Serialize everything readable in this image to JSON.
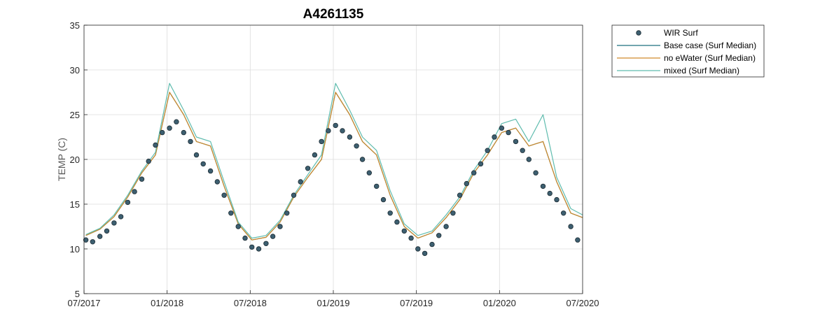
{
  "chart_data": {
    "type": "scatter",
    "title": "A4261135",
    "ylabel": "TEMP (C)",
    "xlabel": "",
    "x_range": [
      "07/2017",
      "07/2020"
    ],
    "xlim": [
      "2017-07-01",
      "2020-07-01"
    ],
    "ylim": [
      5,
      35
    ],
    "grid": true,
    "legend_position": "outside-top-right",
    "x_ticks": [
      "07/2017",
      "01/2018",
      "07/2018",
      "01/2019",
      "07/2019",
      "01/2020",
      "07/2020"
    ],
    "y_ticks": [
      5,
      10,
      15,
      20,
      25,
      30,
      35
    ],
    "legend": [
      "WIR Surf",
      "Base case (Surf Median)",
      "no eWater (Surf Median)",
      "mixed (Surf Median)"
    ],
    "colors": {
      "WIR Surf": "#3d5f70",
      "Base case (Surf Median)": "#1f6f7f",
      "no eWater (Surf Median)": "#d08a2a",
      "mixed (Surf Median)": "#5fbcae"
    },
    "series": [
      {
        "name": "WIR Surf",
        "kind": "markers",
        "x": [
          "2017-07-05",
          "2017-07-20",
          "2017-08-05",
          "2017-08-20",
          "2017-09-05",
          "2017-09-20",
          "2017-10-05",
          "2017-10-20",
          "2017-11-05",
          "2017-11-20",
          "2017-12-05",
          "2017-12-20",
          "2018-01-05",
          "2018-01-20",
          "2018-02-05",
          "2018-02-20",
          "2018-03-05",
          "2018-03-20",
          "2018-04-05",
          "2018-04-20",
          "2018-05-05",
          "2018-05-20",
          "2018-06-05",
          "2018-06-20",
          "2018-07-05",
          "2018-07-20",
          "2018-08-05",
          "2018-08-20",
          "2018-09-05",
          "2018-09-20",
          "2018-10-05",
          "2018-10-20",
          "2018-11-05",
          "2018-11-20",
          "2018-12-05",
          "2018-12-20",
          "2019-01-05",
          "2019-01-20",
          "2019-02-05",
          "2019-02-20",
          "2019-03-05",
          "2019-03-20",
          "2019-04-05",
          "2019-04-20",
          "2019-05-05",
          "2019-05-20",
          "2019-06-05",
          "2019-06-20",
          "2019-07-05",
          "2019-07-20",
          "2019-08-05",
          "2019-08-20",
          "2019-09-05",
          "2019-09-20",
          "2019-10-05",
          "2019-10-20",
          "2019-11-05",
          "2019-11-20",
          "2019-12-05",
          "2019-12-20",
          "2020-01-05",
          "2020-01-20",
          "2020-02-05",
          "2020-02-20",
          "2020-03-05",
          "2020-03-20",
          "2020-04-05",
          "2020-04-20",
          "2020-05-05",
          "2020-05-20",
          "2020-06-05",
          "2020-06-20"
        ],
        "y": [
          11.0,
          10.8,
          11.4,
          12.0,
          12.9,
          13.6,
          15.2,
          16.4,
          17.8,
          19.8,
          21.6,
          23.0,
          23.5,
          24.2,
          23.0,
          22.0,
          20.5,
          19.5,
          18.7,
          17.5,
          16.0,
          14.0,
          12.5,
          11.2,
          10.2,
          10.0,
          10.6,
          11.4,
          12.5,
          14.0,
          16.0,
          17.5,
          19.0,
          20.5,
          22.0,
          23.2,
          23.8,
          23.2,
          22.5,
          21.5,
          20.0,
          18.5,
          17.0,
          15.5,
          14.0,
          13.0,
          12.0,
          11.2,
          10.0,
          9.5,
          10.5,
          11.5,
          12.5,
          14.0,
          16.0,
          17.3,
          18.5,
          19.5,
          21.0,
          22.5,
          23.5,
          23.0,
          22.0,
          21.0,
          20.0,
          18.5,
          17.0,
          16.2,
          15.5,
          14.0,
          12.5,
          11.0
        ]
      },
      {
        "name": "Base case (Surf Median)",
        "kind": "line",
        "x": [
          "2017-07-05",
          "2017-08-05",
          "2017-09-05",
          "2017-10-05",
          "2017-11-05",
          "2017-12-05",
          "2018-01-05",
          "2018-02-05",
          "2018-03-05",
          "2018-04-05",
          "2018-05-05",
          "2018-06-05",
          "2018-07-05",
          "2018-08-05",
          "2018-09-05",
          "2018-10-05",
          "2018-11-05",
          "2018-12-05",
          "2019-01-05",
          "2019-02-05",
          "2019-03-05",
          "2019-04-05",
          "2019-05-05",
          "2019-06-05",
          "2019-07-05",
          "2019-08-05",
          "2019-09-05",
          "2019-10-05",
          "2019-11-05",
          "2019-12-05",
          "2020-01-05",
          "2020-02-05",
          "2020-03-05",
          "2020-04-05",
          "2020-05-05",
          "2020-06-05",
          "2020-07-01"
        ],
        "y": [
          11.5,
          12.2,
          13.6,
          15.8,
          18.5,
          20.5,
          27.5,
          25.0,
          22.0,
          21.5,
          17.0,
          12.8,
          11.0,
          11.3,
          13.0,
          15.8,
          18.0,
          20.0,
          27.5,
          25.0,
          22.0,
          20.5,
          16.0,
          12.5,
          11.2,
          11.8,
          13.5,
          15.5,
          18.5,
          20.5,
          23.0,
          23.5,
          21.5,
          22.0,
          17.5,
          14.0,
          13.5
        ]
      },
      {
        "name": "no eWater (Surf Median)",
        "kind": "line",
        "x": [
          "2017-07-05",
          "2017-08-05",
          "2017-09-05",
          "2017-10-05",
          "2017-11-05",
          "2017-12-05",
          "2018-01-05",
          "2018-02-05",
          "2018-03-05",
          "2018-04-05",
          "2018-05-05",
          "2018-06-05",
          "2018-07-05",
          "2018-08-05",
          "2018-09-05",
          "2018-10-05",
          "2018-11-05",
          "2018-12-05",
          "2019-01-05",
          "2019-02-05",
          "2019-03-05",
          "2019-04-05",
          "2019-05-05",
          "2019-06-05",
          "2019-07-05",
          "2019-08-05",
          "2019-09-05",
          "2019-10-05",
          "2019-11-05",
          "2019-12-05",
          "2020-01-05",
          "2020-02-05",
          "2020-03-05",
          "2020-04-05",
          "2020-05-05",
          "2020-06-05",
          "2020-07-01"
        ],
        "y": [
          11.5,
          12.2,
          13.6,
          15.8,
          18.5,
          20.5,
          27.5,
          25.0,
          22.0,
          21.5,
          17.0,
          12.8,
          11.0,
          11.3,
          13.0,
          15.8,
          18.0,
          20.0,
          27.5,
          25.0,
          22.0,
          20.5,
          16.0,
          12.5,
          11.2,
          11.8,
          13.5,
          15.5,
          18.5,
          20.5,
          23.0,
          23.5,
          21.5,
          22.0,
          17.5,
          14.0,
          13.5
        ]
      },
      {
        "name": "mixed (Surf Median)",
        "kind": "line",
        "x": [
          "2017-07-05",
          "2017-08-05",
          "2017-09-05",
          "2017-10-05",
          "2017-11-05",
          "2017-12-05",
          "2018-01-05",
          "2018-02-05",
          "2018-03-05",
          "2018-04-05",
          "2018-05-05",
          "2018-06-05",
          "2018-07-05",
          "2018-08-05",
          "2018-09-05",
          "2018-10-05",
          "2018-11-05",
          "2018-12-05",
          "2019-01-05",
          "2019-02-05",
          "2019-03-05",
          "2019-04-05",
          "2019-05-05",
          "2019-06-05",
          "2019-07-05",
          "2019-08-05",
          "2019-09-05",
          "2019-10-05",
          "2019-11-05",
          "2019-12-05",
          "2020-01-05",
          "2020-02-05",
          "2020-03-05",
          "2020-04-05",
          "2020-05-05",
          "2020-06-05",
          "2020-07-01"
        ],
        "y": [
          11.6,
          12.3,
          13.8,
          16.0,
          18.7,
          20.8,
          28.5,
          25.5,
          22.5,
          22.0,
          17.5,
          13.0,
          11.2,
          11.5,
          13.2,
          16.0,
          18.3,
          20.5,
          28.5,
          25.5,
          22.5,
          21.0,
          16.5,
          12.8,
          11.5,
          12.0,
          13.8,
          15.8,
          18.8,
          21.0,
          24.0,
          24.5,
          22.0,
          25.0,
          18.0,
          14.5,
          13.8
        ]
      }
    ]
  }
}
